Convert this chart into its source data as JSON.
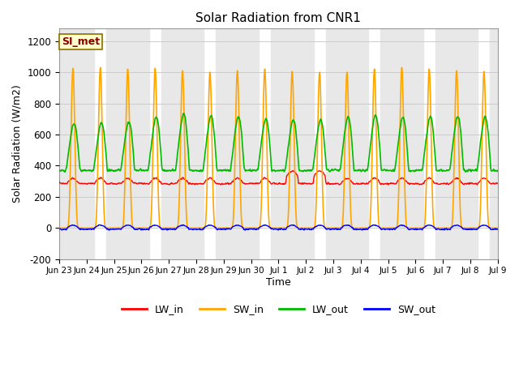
{
  "title": "Solar Radiation from CNR1",
  "xlabel": "Time",
  "ylabel": "Solar Radiation (W/m2)",
  "ylim": [
    -200,
    1280
  ],
  "yticks": [
    -200,
    0,
    200,
    400,
    600,
    800,
    1000,
    1200
  ],
  "n_days": 16,
  "annotation_text": "SI_met",
  "colors": {
    "LW_in": "#ff0000",
    "SW_in": "#ffa500",
    "LW_out": "#00bb00",
    "SW_out": "#0000ff"
  },
  "band_color": "#e8e8e8",
  "grid_color": "#cccccc",
  "points_per_day": 144,
  "SW_in_peaks": [
    1025,
    1030,
    1020,
    1025,
    1010,
    1000,
    1010,
    1020,
    1005,
    1000,
    1000,
    1020,
    1030,
    1020,
    1010,
    1005
  ],
  "LW_out_night": 370,
  "LW_out_day_peaks": [
    660,
    665,
    670,
    700,
    720,
    710,
    700,
    690,
    685,
    680,
    700,
    710,
    700,
    700,
    705,
    700
  ],
  "LW_in_base": 285,
  "figsize": [
    6.4,
    4.8
  ],
  "dpi": 100
}
